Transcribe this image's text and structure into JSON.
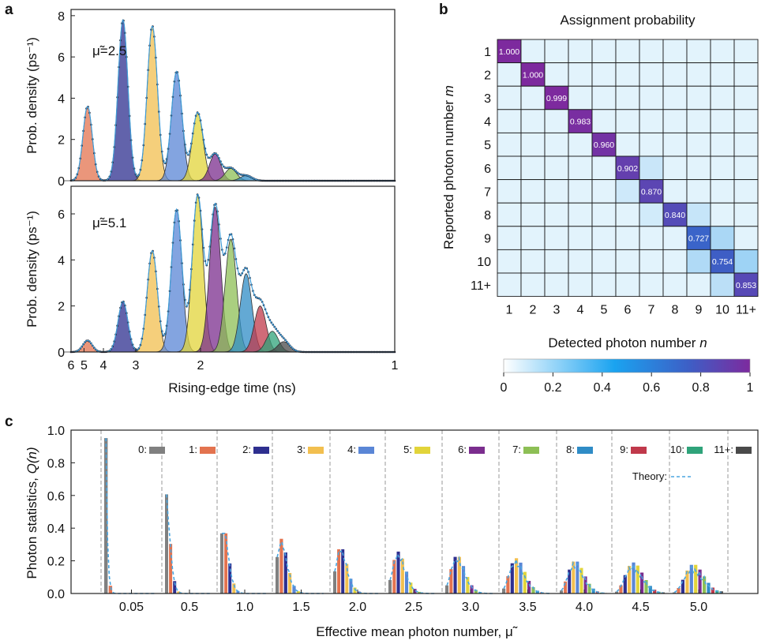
{
  "panel_labels": {
    "a": "a",
    "b": "b",
    "c": "c"
  },
  "colors": {
    "n0": "#808080",
    "n1": "#e3734f",
    "n2": "#2e2f8f",
    "n3": "#f2bf4f",
    "n4": "#5a86d6",
    "n5": "#e2d43a",
    "n6": "#7b2d8e",
    "n7": "#8dbf55",
    "n8": "#2f8cc6",
    "n9": "#c0394b",
    "n10": "#2fa37a",
    "n11": "#4a4a4a",
    "theory": "#4aa6e0"
  },
  "chart_data": [
    {
      "id": "a-top",
      "type": "area",
      "annotation": "μ̃=2.5",
      "ylabel": "Prob. density (ps⁻¹)",
      "xlabel": "",
      "xlim": [
        6,
        1
      ],
      "xscale": "reciprocal",
      "ylim": [
        0,
        8.3
      ],
      "yticks": [
        0,
        2,
        4,
        6,
        8
      ],
      "xticks": [
        6,
        5,
        4,
        3,
        2,
        1
      ],
      "peaks": [
        {
          "n": 1,
          "center": 4.78,
          "height": 3.6
        },
        {
          "n": 2,
          "center": 3.33,
          "height": 7.8
        },
        {
          "n": 3,
          "center": 2.66,
          "height": 7.5
        },
        {
          "n": 4,
          "center": 2.28,
          "height": 5.3
        },
        {
          "n": 5,
          "center": 2.03,
          "height": 3.3
        },
        {
          "n": 6,
          "center": 1.86,
          "height": 1.3
        },
        {
          "n": 7,
          "center": 1.73,
          "height": 0.6
        },
        {
          "n": 8,
          "center": 1.62,
          "height": 0.25
        }
      ]
    },
    {
      "id": "a-bottom",
      "type": "area",
      "annotation": "μ̃=5.1",
      "ylabel": "Prob. density (ps⁻¹)",
      "xlabel": "Rising-edge time (ns)",
      "xlim": [
        6,
        1
      ],
      "xscale": "reciprocal",
      "ylim": [
        0,
        7.2
      ],
      "yticks": [
        0,
        2,
        4,
        6
      ],
      "xticks": [
        6,
        5,
        4,
        3,
        2,
        1
      ],
      "peaks": [
        {
          "n": 1,
          "center": 4.78,
          "height": 0.5
        },
        {
          "n": 2,
          "center": 3.33,
          "height": 2.2
        },
        {
          "n": 3,
          "center": 2.66,
          "height": 4.4
        },
        {
          "n": 4,
          "center": 2.28,
          "height": 6.2
        },
        {
          "n": 5,
          "center": 2.03,
          "height": 6.8
        },
        {
          "n": 6,
          "center": 1.86,
          "height": 6.3
        },
        {
          "n": 7,
          "center": 1.73,
          "height": 4.9
        },
        {
          "n": 8,
          "center": 1.62,
          "height": 3.4
        },
        {
          "n": 9,
          "center": 1.53,
          "height": 2.0
        },
        {
          "n": 10,
          "center": 1.46,
          "height": 0.9
        },
        {
          "n": 11,
          "center": 1.4,
          "height": 0.45
        }
      ]
    },
    {
      "id": "b",
      "type": "heatmap",
      "title": "Assignment probability",
      "xlabel": "Detected photon number ",
      "xlabel_var": "n",
      "ylabel": "Reported photon number ",
      "ylabel_var": "m",
      "labels": [
        "1",
        "2",
        "3",
        "4",
        "5",
        "6",
        "7",
        "8",
        "9",
        "10",
        "11+"
      ],
      "diagonal": [
        "1.000",
        "1.000",
        "0.999",
        "0.983",
        "0.960",
        "0.902",
        "0.870",
        "0.840",
        "0.727",
        "0.754",
        "0.853"
      ],
      "diagonal_values": [
        1.0,
        1.0,
        0.999,
        0.983,
        0.96,
        0.902,
        0.87,
        0.84,
        0.727,
        0.754,
        0.853
      ],
      "off_diagonal": [
        {
          "row": 5,
          "col": 6,
          "value": 0.09
        },
        {
          "row": 6,
          "col": 5,
          "value": 0.07
        },
        {
          "row": 7,
          "col": 6,
          "value": 0.06
        },
        {
          "row": 7,
          "col": 8,
          "value": 0.1
        },
        {
          "row": 8,
          "col": 9,
          "value": 0.2
        },
        {
          "row": 9,
          "col": 8,
          "value": 0.18
        },
        {
          "row": 9,
          "col": 10,
          "value": 0.22
        },
        {
          "row": 10,
          "col": 9,
          "value": 0.14
        }
      ],
      "colorbar": {
        "min": 0,
        "max": 1,
        "ticks": [
          "0",
          "0.2",
          "0.4",
          "0.6",
          "0.8",
          "1"
        ],
        "tick_values": [
          0,
          0.2,
          0.4,
          0.6,
          0.8,
          1
        ]
      }
    },
    {
      "id": "c",
      "type": "bar",
      "ylabel": "Photon statistics, ",
      "ylabel_var": "Q(n)",
      "xlabel": "Effective mean photon number, μ̃",
      "ylim": [
        0,
        1.0
      ],
      "yticks": [
        "0.0",
        "0.2",
        "0.4",
        "0.6",
        "0.8",
        "1.0"
      ],
      "ytick_values": [
        0,
        0.2,
        0.4,
        0.6,
        0.8,
        1.0
      ],
      "categories": [
        "0.05",
        "0.5",
        "1.0",
        "1.5",
        "2.0",
        "2.5",
        "3.0",
        "3.5",
        "4.0",
        "4.5",
        "5.0"
      ],
      "means": [
        0.05,
        0.5,
        1.0,
        1.5,
        2.0,
        2.5,
        3.0,
        3.5,
        4.0,
        4.5,
        5.0
      ],
      "distribution": "poisson",
      "legend": [
        "0:",
        "1:",
        "2:",
        "3:",
        "4:",
        "5:",
        "6:",
        "7:",
        "8:",
        "9:",
        "10:",
        "11+:"
      ],
      "legend_placement": "top",
      "theory_label": "Theory:"
    }
  ]
}
